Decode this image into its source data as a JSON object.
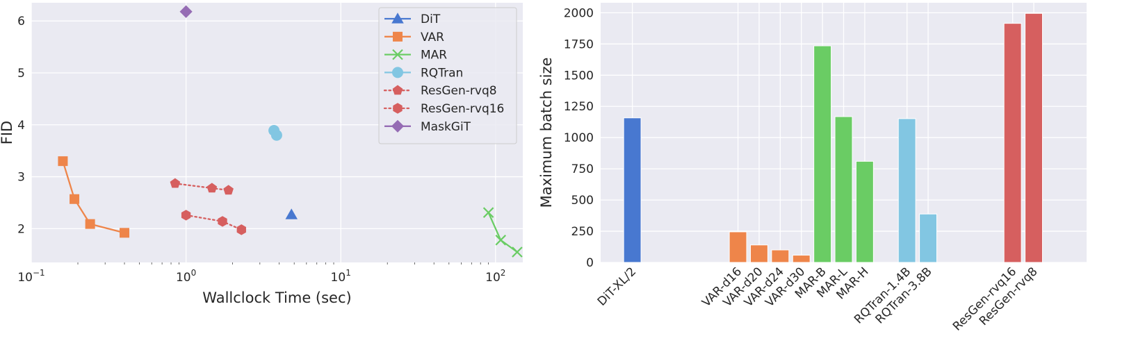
{
  "chart_data": [
    {
      "type": "scatter",
      "xscale": "log",
      "xlabel": "Wallclock Time (sec)",
      "ylabel": "FID",
      "xlim": [
        0.1,
        150
      ],
      "ylim": [
        1.35,
        6.35
      ],
      "xticks": [
        {
          "value": 0.1,
          "base": "10",
          "exp": "−1"
        },
        {
          "value": 1,
          "base": "10",
          "exp": "0"
        },
        {
          "value": 10,
          "base": "10",
          "exp": "1"
        },
        {
          "value": 100,
          "base": "10",
          "exp": "2"
        }
      ],
      "yticks": [
        {
          "value": 2,
          "label": "2"
        },
        {
          "value": 3,
          "label": "3"
        },
        {
          "value": 4,
          "label": "4"
        },
        {
          "value": 5,
          "label": "5"
        },
        {
          "value": 6,
          "label": "6"
        }
      ],
      "legend_position": "top-right",
      "series": [
        {
          "name": "DiT",
          "color": "#4878d0",
          "marker": "triangle",
          "line": "solid",
          "segments": [
            [
              {
                "x": 4.8,
                "y": 2.27
              }
            ]
          ]
        },
        {
          "name": "VAR",
          "color": "#ee854a",
          "marker": "square",
          "line": "solid",
          "segments": [
            [
              {
                "x": 0.16,
                "y": 3.3
              },
              {
                "x": 0.19,
                "y": 2.57
              },
              {
                "x": 0.24,
                "y": 2.09
              },
              {
                "x": 0.4,
                "y": 1.92
              }
            ]
          ]
        },
        {
          "name": "MAR",
          "color": "#6acc64",
          "marker": "x",
          "line": "solid",
          "segments": [
            [
              {
                "x": 90,
                "y": 2.31
              },
              {
                "x": 108,
                "y": 1.78
              },
              {
                "x": 138,
                "y": 1.55
              }
            ]
          ]
        },
        {
          "name": "RQTran",
          "color": "#82c6e2",
          "marker": "circle",
          "line": "solid",
          "segments": [
            [
              {
                "x": 3.7,
                "y": 3.89
              },
              {
                "x": 3.85,
                "y": 3.8
              }
            ]
          ]
        },
        {
          "name": "ResGen-rvq8",
          "color": "#d65f5f",
          "marker": "pentagon",
          "line": "dotted",
          "segments": [
            [
              {
                "x": 0.85,
                "y": 2.87
              },
              {
                "x": 1.47,
                "y": 2.78
              },
              {
                "x": 1.88,
                "y": 2.74
              }
            ]
          ]
        },
        {
          "name": "ResGen-rvq16",
          "color": "#d65f5f",
          "marker": "hexagon",
          "line": "dotted",
          "segments": [
            [
              {
                "x": 1.0,
                "y": 2.26
              },
              {
                "x": 1.72,
                "y": 2.14
              },
              {
                "x": 2.28,
                "y": 1.98
              }
            ]
          ]
        },
        {
          "name": "MaskGiT",
          "color": "#956cb4",
          "marker": "diamond",
          "line": "solid",
          "segments": [
            [
              {
                "x": 1.0,
                "y": 6.18
              }
            ]
          ]
        }
      ]
    },
    {
      "type": "bar",
      "ylabel": "Maximum batch size",
      "ylim": [
        0,
        2080
      ],
      "yticks": [
        0,
        250,
        500,
        750,
        1000,
        1250,
        1500,
        1750,
        2000
      ],
      "slots": 23,
      "bars": [
        {
          "label": "DiT-XL/2",
          "value": 1158,
          "slot": 1,
          "color": "#4878d0"
        },
        {
          "label": "VAR-d16",
          "value": 245,
          "slot": 6,
          "color": "#ee854a"
        },
        {
          "label": "VAR-d20",
          "value": 140,
          "slot": 7,
          "color": "#ee854a"
        },
        {
          "label": "VAR-d24",
          "value": 100,
          "slot": 8,
          "color": "#ee854a"
        },
        {
          "label": "VAR-d30",
          "value": 58,
          "slot": 9,
          "color": "#ee854a"
        },
        {
          "label": "MAR-B",
          "value": 1735,
          "slot": 10,
          "color": "#6acc64"
        },
        {
          "label": "MAR-L",
          "value": 1168,
          "slot": 11,
          "color": "#6acc64"
        },
        {
          "label": "MAR-H",
          "value": 810,
          "slot": 12,
          "color": "#6acc64"
        },
        {
          "label": "RQTran-1.4B",
          "value": 1152,
          "slot": 14,
          "color": "#82c6e2"
        },
        {
          "label": "RQTran-3.8B",
          "value": 388,
          "slot": 15,
          "color": "#82c6e2"
        },
        {
          "label": "ResGen-rvq16",
          "value": 1915,
          "slot": 19,
          "color": "#d65f5f"
        },
        {
          "label": "ResGen-rvq8",
          "value": 1995,
          "slot": 20,
          "color": "#d65f5f"
        }
      ]
    }
  ]
}
